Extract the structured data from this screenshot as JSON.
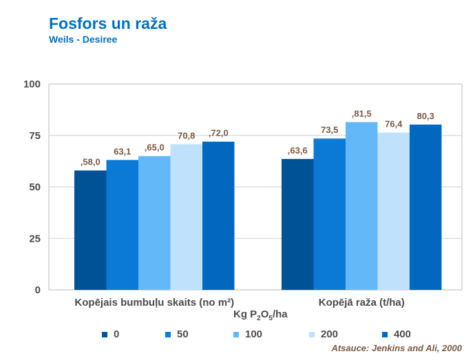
{
  "title": "Fosfors un raža",
  "subtitle": "Weils  - Desiree",
  "source": "Atsauce: Jenkins and Ali, 2000",
  "chart_data": {
    "type": "bar",
    "categories": [
      "Kopējais bumbuļu skaits (no m²)",
      "Kopējā raža (t/ha)"
    ],
    "xlabel": "Kg P2O5/ha",
    "ylim": [
      0,
      100
    ],
    "yticks": [
      0,
      25,
      50,
      75,
      100
    ],
    "grid": true,
    "legend_position": "bottom",
    "series": [
      {
        "name": "0",
        "color": "#005296",
        "values": [
          58.0,
          63.6
        ],
        "labels": [
          ",58,0",
          ",63,6"
        ]
      },
      {
        "name": "50",
        "color": "#0a7ad6",
        "values": [
          63.1,
          73.5
        ],
        "labels": [
          "63,1",
          "73,5"
        ]
      },
      {
        "name": "100",
        "color": "#63b8f7",
        "values": [
          65.0,
          81.5
        ],
        "labels": [
          ",65,0",
          ",81,5"
        ]
      },
      {
        "name": "200",
        "color": "#bfe1fb",
        "values": [
          70.8,
          76.4
        ],
        "labels": [
          "70,8",
          "76,4"
        ]
      },
      {
        "name": "400",
        "color": "#0069bf",
        "values": [
          72.0,
          80.3
        ],
        "labels": [
          ",72,0",
          "80,3"
        ]
      }
    ]
  }
}
